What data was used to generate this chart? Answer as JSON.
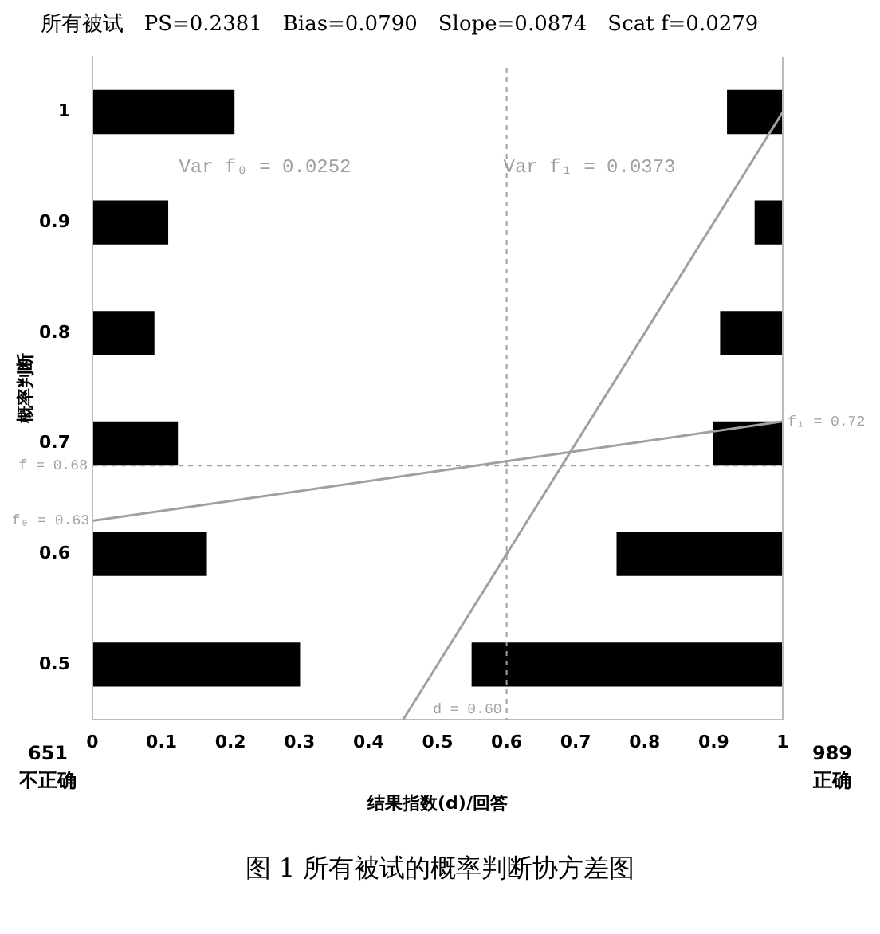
{
  "chart_data": {
    "type": "bar",
    "orientation": "horizontal",
    "title": "所有被试　PS=0.2381　Bias=0.0790　Slope=0.0874　Scat f=0.0279",
    "xlabel": "结果指数(d)/回答",
    "ylabel": "概率判断",
    "xlim": [
      0,
      1
    ],
    "xticks": [
      0,
      0.1,
      0.2,
      0.3,
      0.4,
      0.5,
      0.6,
      0.7,
      0.8,
      0.9,
      1
    ],
    "ylim": [
      0.45,
      1.05
    ],
    "yticks": [
      0.5,
      0.6,
      0.7,
      0.8,
      0.9,
      1
    ],
    "legend": false,
    "grid": false,
    "series": [
      {
        "color": "#000000",
        "x": [
          1,
          0.9,
          0.8,
          0.7,
          0.6,
          0.5
        ],
        "base": [
          0,
          0,
          0,
          0,
          0,
          0
        ],
        "values": [
          0.205,
          0.109,
          0.089,
          0.123,
          0.165,
          0.3
        ]
      },
      {
        "color": "#000000",
        "x": [
          1,
          0.9,
          0.8,
          0.7,
          0.6,
          0.5
        ],
        "base": [
          0.92,
          0.96,
          0.91,
          0.9,
          0.76,
          0.55
        ],
        "values": [
          0.08,
          0.04,
          0.09,
          0.1,
          0.24,
          0.45
        ]
      },
      {
        "type": "line",
        "color": "#a0a0a0",
        "x": [
          0.45,
          1
        ],
        "values": [
          0.45,
          1
        ]
      },
      {
        "type": "line",
        "color": "#a0a0a0",
        "x": [
          0.63,
          0.72
        ],
        "values": [
          0,
          1
        ]
      }
    ],
    "ref_lines": [
      {
        "axis": "y",
        "value": 0.68,
        "label": "f = 0.68",
        "color": "#a0a0a0",
        "line_style": "dashed"
      },
      {
        "axis": "x",
        "value": 0.6,
        "label": "d = 0.60",
        "color": "#a0a0a0",
        "line_style": "dashed"
      }
    ],
    "annotations": [
      {
        "text": "f₀ = 0.63",
        "x": 0,
        "y": 0.63
      },
      {
        "text": "f₁ = 0.72",
        "x": 1,
        "y": 0.72
      },
      "Var f₀ = 0.0252",
      "Var f₁ = 0.0373",
      "651\n不正确",
      "989\n正确",
      "图 1 所有被试的概率判断协方差图"
    ]
  }
}
